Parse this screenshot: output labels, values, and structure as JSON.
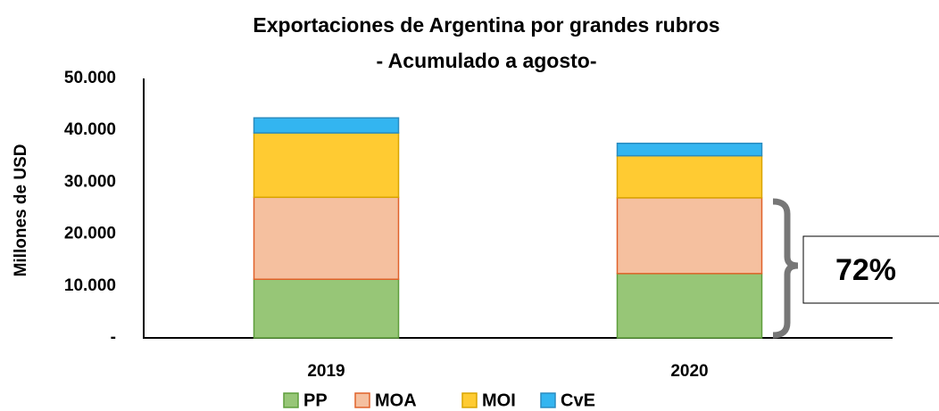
{
  "chart_data": {
    "type": "stacked_bar",
    "title": "Exportaciones de Argentina por grandes rubros",
    "subtitle": "- Acumulado a agosto-",
    "y_label": "Millones de USD",
    "categories": [
      "2019",
      "2020"
    ],
    "series": [
      {
        "name": "PP",
        "color": "#97c677",
        "border": "#5e9e3c",
        "values": [
          11300,
          12400
        ]
      },
      {
        "name": "MOA",
        "color": "#f5c09f",
        "border": "#e0622a",
        "values": [
          15800,
          14600
        ]
      },
      {
        "name": "MOI",
        "color": "#ffcb32",
        "border": "#d9a400",
        "values": [
          12400,
          8100
        ]
      },
      {
        "name": "CvE",
        "color": "#33b5f0",
        "border": "#2a8cc0",
        "values": [
          2900,
          2400
        ]
      }
    ],
    "ylim": [
      0,
      50000
    ],
    "yticks": [
      {
        "value": 0,
        "label": "-"
      },
      {
        "value": 10000,
        "label": "10.000"
      },
      {
        "value": 20000,
        "label": "20.000"
      },
      {
        "value": 30000,
        "label": "30.000"
      },
      {
        "value": 40000,
        "label": "40.000"
      },
      {
        "value": 50000,
        "label": "50.000"
      }
    ],
    "grid": false,
    "legend": "bottom",
    "annotation": "72%"
  }
}
